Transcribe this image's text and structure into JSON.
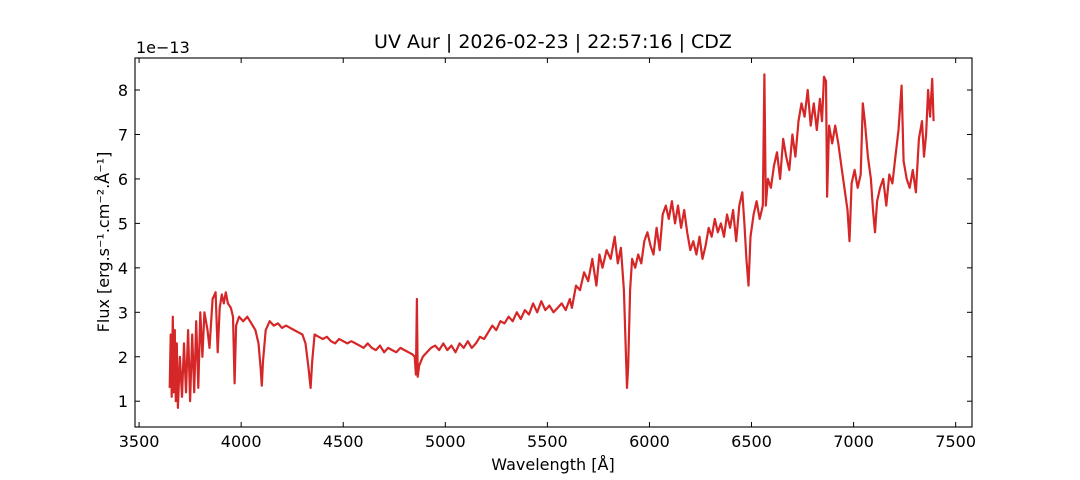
{
  "chart_data": {
    "type": "line",
    "title": "UV Aur | 2026-02-23 | 22:57:16 | CDZ",
    "xlabel": "Wavelength [Å]",
    "ylabel": "Flux [erg.s⁻¹.cm⁻².Å⁻¹]",
    "y_scale_label": "1e−13",
    "xlim": [
      3480,
      7580
    ],
    "ylim": [
      0.42,
      8.72
    ],
    "xticks": [
      3500,
      4000,
      4500,
      5000,
      5500,
      6000,
      6500,
      7000,
      7500
    ],
    "yticks": [
      1,
      2,
      3,
      4,
      5,
      6,
      7,
      8
    ],
    "grid": false,
    "line_color": "#d62728",
    "series": [
      {
        "name": "",
        "points": [
          [
            3650,
            1.3
          ],
          [
            3655,
            2.5
          ],
          [
            3660,
            1.1
          ],
          [
            3665,
            2.9
          ],
          [
            3670,
            1.2
          ],
          [
            3675,
            2.6
          ],
          [
            3680,
            1.0
          ],
          [
            3685,
            2.3
          ],
          [
            3690,
            0.85
          ],
          [
            3700,
            2.0
          ],
          [
            3710,
            1.1
          ],
          [
            3720,
            2.3
          ],
          [
            3730,
            1.2
          ],
          [
            3740,
            2.6
          ],
          [
            3750,
            1.0
          ],
          [
            3760,
            2.5
          ],
          [
            3770,
            1.2
          ],
          [
            3780,
            2.8
          ],
          [
            3790,
            1.3
          ],
          [
            3800,
            3.0
          ],
          [
            3810,
            2.0
          ],
          [
            3820,
            3.0
          ],
          [
            3835,
            2.6
          ],
          [
            3845,
            2.2
          ],
          [
            3860,
            3.3
          ],
          [
            3875,
            3.45
          ],
          [
            3885,
            2.1
          ],
          [
            3895,
            3.1
          ],
          [
            3905,
            3.4
          ],
          [
            3915,
            3.2
          ],
          [
            3925,
            3.45
          ],
          [
            3935,
            3.2
          ],
          [
            3950,
            3.1
          ],
          [
            3960,
            2.9
          ],
          [
            3968,
            1.4
          ],
          [
            3975,
            2.7
          ],
          [
            3990,
            2.9
          ],
          [
            4010,
            2.8
          ],
          [
            4030,
            2.9
          ],
          [
            4050,
            2.75
          ],
          [
            4070,
            2.6
          ],
          [
            4085,
            2.3
          ],
          [
            4095,
            1.75
          ],
          [
            4101,
            1.35
          ],
          [
            4107,
            1.9
          ],
          [
            4120,
            2.6
          ],
          [
            4140,
            2.8
          ],
          [
            4160,
            2.7
          ],
          [
            4180,
            2.75
          ],
          [
            4200,
            2.65
          ],
          [
            4220,
            2.7
          ],
          [
            4240,
            2.65
          ],
          [
            4260,
            2.6
          ],
          [
            4280,
            2.55
          ],
          [
            4300,
            2.5
          ],
          [
            4315,
            2.3
          ],
          [
            4330,
            1.75
          ],
          [
            4340,
            1.3
          ],
          [
            4348,
            1.9
          ],
          [
            4360,
            2.5
          ],
          [
            4380,
            2.45
          ],
          [
            4400,
            2.4
          ],
          [
            4420,
            2.45
          ],
          [
            4440,
            2.35
          ],
          [
            4460,
            2.3
          ],
          [
            4480,
            2.4
          ],
          [
            4500,
            2.35
          ],
          [
            4520,
            2.3
          ],
          [
            4540,
            2.35
          ],
          [
            4560,
            2.3
          ],
          [
            4580,
            2.25
          ],
          [
            4600,
            2.2
          ],
          [
            4620,
            2.3
          ],
          [
            4640,
            2.2
          ],
          [
            4660,
            2.15
          ],
          [
            4680,
            2.25
          ],
          [
            4700,
            2.1
          ],
          [
            4720,
            2.2
          ],
          [
            4740,
            2.15
          ],
          [
            4760,
            2.1
          ],
          [
            4780,
            2.2
          ],
          [
            4800,
            2.15
          ],
          [
            4820,
            2.1
          ],
          [
            4840,
            2.05
          ],
          [
            4850,
            2.0
          ],
          [
            4856,
            1.6
          ],
          [
            4861,
            3.3
          ],
          [
            4865,
            1.55
          ],
          [
            4872,
            1.8
          ],
          [
            4890,
            2.0
          ],
          [
            4910,
            2.1
          ],
          [
            4930,
            2.2
          ],
          [
            4950,
            2.25
          ],
          [
            4970,
            2.15
          ],
          [
            4990,
            2.3
          ],
          [
            5010,
            2.15
          ],
          [
            5030,
            2.25
          ],
          [
            5050,
            2.1
          ],
          [
            5070,
            2.3
          ],
          [
            5090,
            2.2
          ],
          [
            5110,
            2.35
          ],
          [
            5130,
            2.2
          ],
          [
            5150,
            2.3
          ],
          [
            5170,
            2.45
          ],
          [
            5190,
            2.4
          ],
          [
            5210,
            2.55
          ],
          [
            5230,
            2.7
          ],
          [
            5250,
            2.6
          ],
          [
            5270,
            2.8
          ],
          [
            5290,
            2.75
          ],
          [
            5310,
            2.9
          ],
          [
            5330,
            2.8
          ],
          [
            5350,
            3.0
          ],
          [
            5370,
            2.85
          ],
          [
            5390,
            3.05
          ],
          [
            5410,
            2.95
          ],
          [
            5430,
            3.2
          ],
          [
            5450,
            3.0
          ],
          [
            5470,
            3.25
          ],
          [
            5490,
            3.05
          ],
          [
            5510,
            3.15
          ],
          [
            5530,
            3.0
          ],
          [
            5550,
            3.1
          ],
          [
            5570,
            3.2
          ],
          [
            5590,
            3.05
          ],
          [
            5610,
            3.3
          ],
          [
            5620,
            3.1
          ],
          [
            5640,
            3.6
          ],
          [
            5660,
            3.5
          ],
          [
            5680,
            3.9
          ],
          [
            5700,
            3.7
          ],
          [
            5720,
            4.2
          ],
          [
            5740,
            3.6
          ],
          [
            5755,
            4.3
          ],
          [
            5770,
            4.0
          ],
          [
            5790,
            4.4
          ],
          [
            5810,
            4.2
          ],
          [
            5830,
            4.7
          ],
          [
            5845,
            4.1
          ],
          [
            5860,
            4.45
          ],
          [
            5875,
            3.5
          ],
          [
            5885,
            2.0
          ],
          [
            5890,
            1.3
          ],
          [
            5896,
            1.8
          ],
          [
            5905,
            3.5
          ],
          [
            5915,
            4.2
          ],
          [
            5930,
            4.0
          ],
          [
            5945,
            4.3
          ],
          [
            5960,
            4.1
          ],
          [
            5975,
            4.6
          ],
          [
            5990,
            4.8
          ],
          [
            6005,
            4.5
          ],
          [
            6020,
            4.3
          ],
          [
            6035,
            4.9
          ],
          [
            6050,
            4.4
          ],
          [
            6065,
            5.2
          ],
          [
            6080,
            5.4
          ],
          [
            6095,
            5.1
          ],
          [
            6110,
            5.5
          ],
          [
            6125,
            5.0
          ],
          [
            6140,
            5.4
          ],
          [
            6155,
            4.9
          ],
          [
            6170,
            5.3
          ],
          [
            6185,
            4.8
          ],
          [
            6200,
            4.4
          ],
          [
            6215,
            4.6
          ],
          [
            6230,
            4.3
          ],
          [
            6245,
            4.7
          ],
          [
            6260,
            4.2
          ],
          [
            6275,
            4.5
          ],
          [
            6290,
            4.9
          ],
          [
            6305,
            4.7
          ],
          [
            6320,
            5.1
          ],
          [
            6335,
            4.8
          ],
          [
            6350,
            5.0
          ],
          [
            6365,
            4.7
          ],
          [
            6380,
            5.2
          ],
          [
            6395,
            4.9
          ],
          [
            6410,
            5.3
          ],
          [
            6425,
            4.6
          ],
          [
            6440,
            5.4
          ],
          [
            6455,
            5.7
          ],
          [
            6465,
            5.0
          ],
          [
            6475,
            4.2
          ],
          [
            6485,
            3.6
          ],
          [
            6495,
            4.7
          ],
          [
            6510,
            5.2
          ],
          [
            6525,
            5.5
          ],
          [
            6540,
            5.1
          ],
          [
            6555,
            5.4
          ],
          [
            6563,
            8.35
          ],
          [
            6570,
            5.4
          ],
          [
            6580,
            6.0
          ],
          [
            6595,
            5.8
          ],
          [
            6610,
            6.3
          ],
          [
            6625,
            6.6
          ],
          [
            6640,
            6.0
          ],
          [
            6655,
            6.9
          ],
          [
            6670,
            6.5
          ],
          [
            6685,
            6.2
          ],
          [
            6700,
            7.0
          ],
          [
            6715,
            6.5
          ],
          [
            6730,
            7.3
          ],
          [
            6745,
            7.7
          ],
          [
            6760,
            7.4
          ],
          [
            6775,
            8.0
          ],
          [
            6790,
            7.2
          ],
          [
            6805,
            7.7
          ],
          [
            6820,
            7.1
          ],
          [
            6835,
            7.8
          ],
          [
            6845,
            7.3
          ],
          [
            6855,
            8.3
          ],
          [
            6865,
            8.2
          ],
          [
            6870,
            5.6
          ],
          [
            6880,
            7.2
          ],
          [
            6895,
            6.8
          ],
          [
            6910,
            7.2
          ],
          [
            6925,
            6.8
          ],
          [
            6940,
            6.3
          ],
          [
            6955,
            5.8
          ],
          [
            6970,
            5.3
          ],
          [
            6980,
            4.6
          ],
          [
            6990,
            5.9
          ],
          [
            7005,
            6.2
          ],
          [
            7020,
            5.8
          ],
          [
            7035,
            6.1
          ],
          [
            7045,
            7.7
          ],
          [
            7055,
            7.3
          ],
          [
            7070,
            6.5
          ],
          [
            7085,
            6.0
          ],
          [
            7095,
            5.3
          ],
          [
            7105,
            4.8
          ],
          [
            7115,
            5.5
          ],
          [
            7130,
            5.8
          ],
          [
            7145,
            6.0
          ],
          [
            7160,
            5.4
          ],
          [
            7175,
            6.1
          ],
          [
            7190,
            5.9
          ],
          [
            7205,
            6.5
          ],
          [
            7220,
            7.1
          ],
          [
            7235,
            8.1
          ],
          [
            7245,
            6.4
          ],
          [
            7260,
            6.0
          ],
          [
            7275,
            5.8
          ],
          [
            7290,
            6.2
          ],
          [
            7305,
            5.7
          ],
          [
            7320,
            6.9
          ],
          [
            7335,
            7.3
          ],
          [
            7345,
            6.5
          ],
          [
            7355,
            7.0
          ],
          [
            7365,
            8.0
          ],
          [
            7375,
            7.4
          ],
          [
            7385,
            8.25
          ],
          [
            7392,
            7.3
          ]
        ]
      }
    ]
  }
}
